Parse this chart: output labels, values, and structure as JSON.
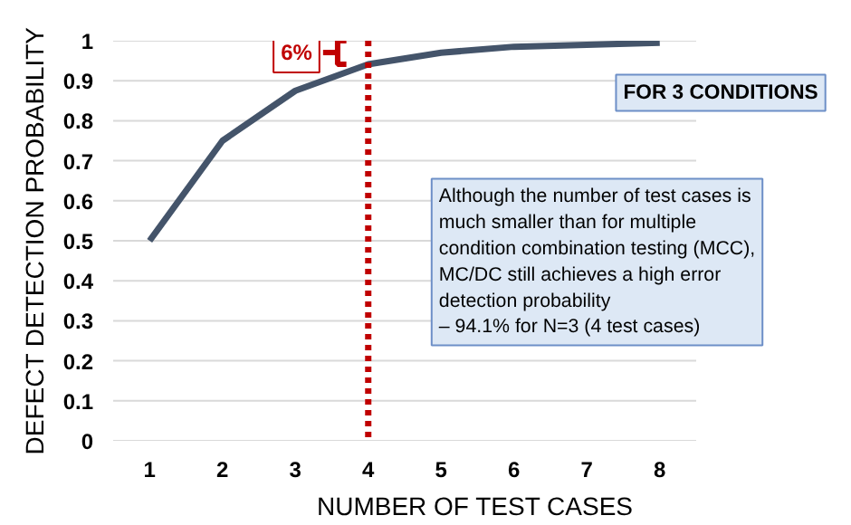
{
  "chart_data": {
    "type": "line",
    "xlabel": "NUMBER OF TEST CASES",
    "ylabel": "DEFECT DETECTION PROBABILITY",
    "categories": [
      "1",
      "2",
      "3",
      "4",
      "5",
      "6",
      "7",
      "8"
    ],
    "values": [
      0.5,
      0.75,
      0.875,
      0.941,
      0.97,
      0.985,
      0.99,
      0.995
    ],
    "color": "#44546a",
    "marker": "none",
    "line_style": "solid",
    "ylim": [
      0,
      1
    ],
    "yticks": [
      0,
      0.1,
      0.2,
      0.3,
      0.4,
      0.5,
      0.6,
      0.7,
      0.8,
      0.9,
      1
    ],
    "grid": "y",
    "ref_lines": [
      {
        "axis": "x",
        "value": "4",
        "color": "#c00000",
        "line_style": "dotted"
      }
    ],
    "annotations": [
      "6%",
      "FOR 3 CONDITIONS",
      "Although the number of test cases is much smaller than for multiple condition combination testing (MCC), MC/DC still achieves a high error detection probability\n– 94.1% for N=3 (4 test cases)"
    ]
  }
}
